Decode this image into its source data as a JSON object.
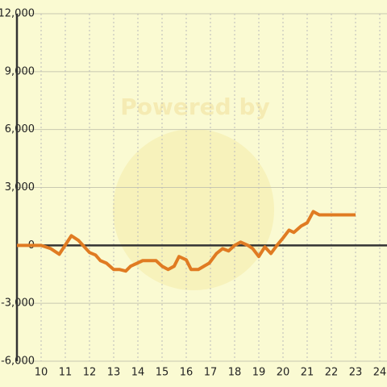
{
  "chart_data": {
    "type": "line",
    "watermark": "Powered by",
    "x": [
      9,
      10,
      10.4,
      10.75,
      11.25,
      11.55,
      12,
      12.25,
      12.45,
      12.7,
      13,
      13.25,
      13.5,
      13.7,
      14.2,
      14.75,
      15,
      15.25,
      15.5,
      15.7,
      16,
      16.2,
      16.5,
      16.95,
      17.25,
      17.5,
      17.75,
      18,
      18.25,
      18.55,
      18.75,
      19,
      19.25,
      19.5,
      19.75,
      20,
      20.25,
      20.45,
      20.75,
      21,
      21.25,
      21.5,
      23
    ],
    "series": [
      {
        "color": "#e07b22",
        "values": [
          0,
          0,
          -170,
          -460,
          500,
          250,
          -370,
          -500,
          -790,
          -920,
          -1250,
          -1250,
          -1330,
          -1080,
          -790,
          -790,
          -1080,
          -1250,
          -1080,
          -580,
          -750,
          -1250,
          -1250,
          -920,
          -420,
          -170,
          -290,
          0,
          170,
          0,
          -170,
          -580,
          -80,
          -420,
          0,
          380,
          790,
          670,
          1000,
          1170,
          1750,
          1580,
          1580
        ]
      }
    ],
    "xlim": [
      9,
      24.3
    ],
    "xticks": [
      10,
      11,
      12,
      13,
      14,
      15,
      16,
      17,
      18,
      19,
      20,
      21,
      22,
      23,
      24
    ],
    "ylim": [
      -6000,
      12000
    ],
    "yticks": [
      {
        "value": -6000,
        "label": "-6,000"
      },
      {
        "value": -3000,
        "label": "-3,000"
      },
      0,
      {
        "value": 3000,
        "label": "3,000"
      },
      {
        "value": 6000,
        "label": "6,000"
      },
      {
        "value": 9000,
        "label": "9,000"
      },
      {
        "value": 12000,
        "label": "12,000"
      }
    ],
    "grid": true
  }
}
